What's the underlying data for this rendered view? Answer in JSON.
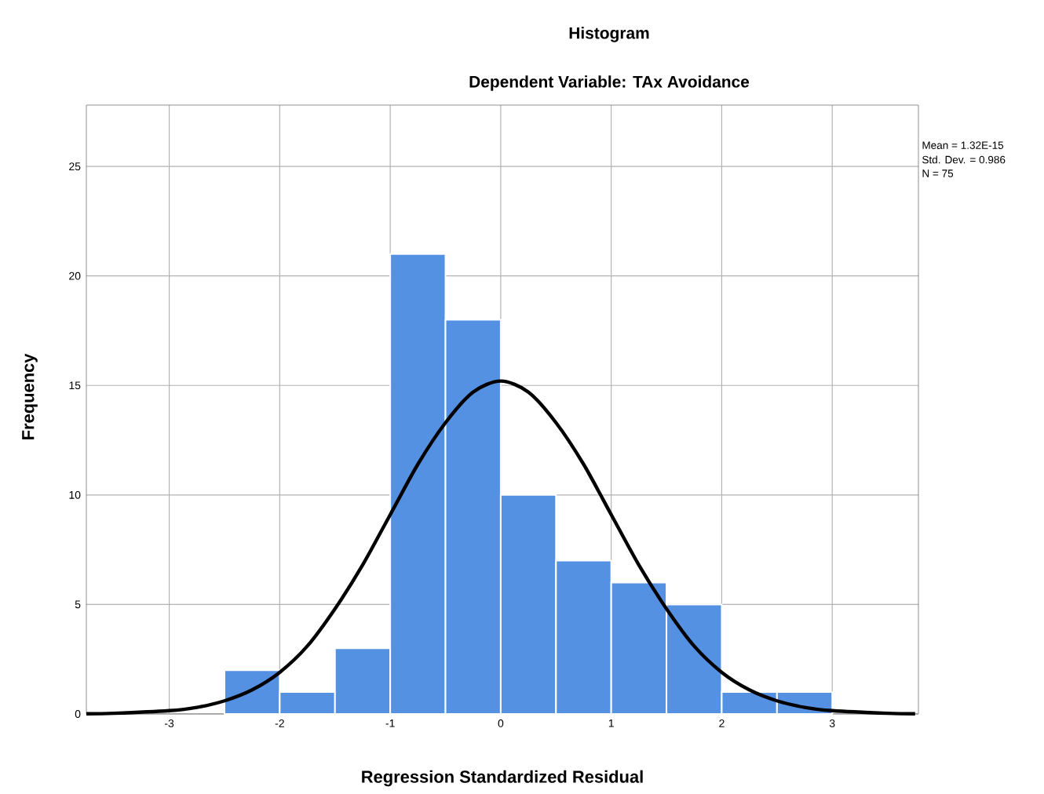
{
  "chart_data": {
    "type": "histogram",
    "title": "Histogram",
    "subtitle": "Dependent Variable: TAx Avoidance",
    "xlabel": "Regression Standardized Residual",
    "ylabel": "Frequency",
    "bins": [
      -2.5,
      -2,
      -1.5,
      -1,
      -0.5,
      0,
      0.5,
      1,
      1.5,
      2,
      2.5,
      3
    ],
    "values": [
      2,
      1,
      3,
      21,
      18,
      10,
      7,
      6,
      5,
      1,
      1
    ],
    "color": "#5591e2",
    "series": [
      {
        "type": "line",
        "color": "#000000",
        "x": [
          -3.75,
          -3.5,
          -3,
          -2.75,
          -2.5,
          -2.25,
          -2,
          -1.75,
          -1.5,
          -1.25,
          -1,
          -0.75,
          -0.5,
          -0.25,
          0,
          0.25,
          0.5,
          0.75,
          1,
          1.25,
          1.5,
          1.75,
          2,
          2.25,
          2.5,
          2.75,
          3,
          3.5,
          3.75
        ],
        "values": [
          0.01,
          0.03,
          0.15,
          0.3,
          0.6,
          1.1,
          1.9,
          3.1,
          4.8,
          6.8,
          9.1,
          11.4,
          13.3,
          14.7,
          15.2,
          14.7,
          13.3,
          11.4,
          9.1,
          6.8,
          4.8,
          3.1,
          1.9,
          1.1,
          0.6,
          0.3,
          0.15,
          0.03,
          0.01
        ]
      }
    ],
    "xlim": [
      -3.75,
      3.78
    ],
    "ylim": [
      0,
      27.8
    ],
    "xticks": [
      -3,
      -2,
      -1,
      0,
      1,
      2,
      3
    ],
    "yticks": [
      0,
      5,
      10,
      15,
      20,
      25
    ],
    "grid": true,
    "annotations": [
      "Mean = 1.32E-15",
      "Std. Dev. = 0.986",
      "N = 75"
    ]
  }
}
